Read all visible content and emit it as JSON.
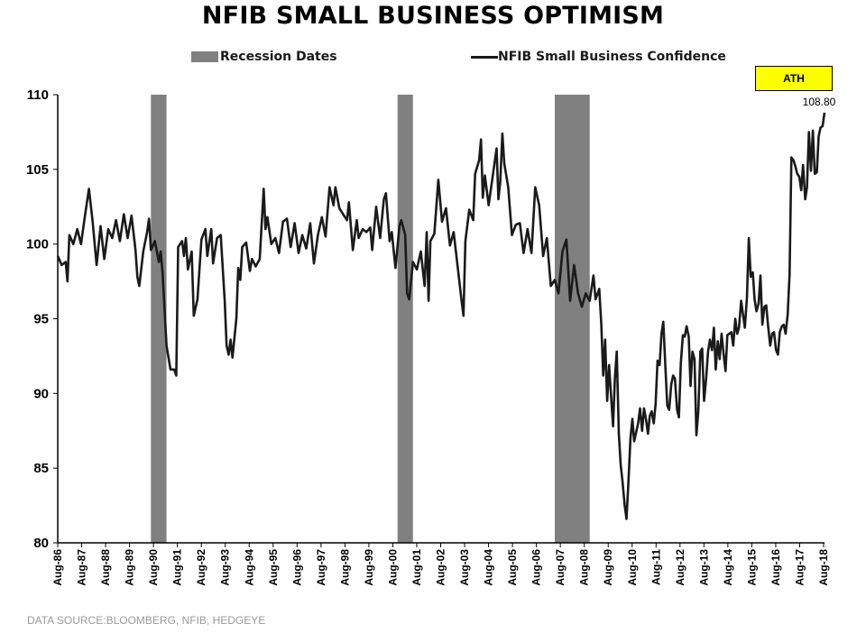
{
  "chart_data": {
    "type": "line",
    "title": "NFIB SMALL BUSINESS OPTIMISM",
    "xlabel": "",
    "ylabel": "",
    "ylim": [
      80,
      110
    ],
    "yticks": [
      "80",
      "85",
      "90",
      "95",
      "100",
      "105",
      "110"
    ],
    "x_start": "1986-08",
    "x_end": "2018-08",
    "xtick_labels": [
      "Aug-86",
      "Aug-87",
      "Aug-88",
      "Aug-89",
      "Aug-90",
      "Aug-91",
      "Aug-92",
      "Aug-93",
      "Aug-94",
      "Aug-95",
      "Aug-96",
      "Aug-97",
      "Aug-98",
      "Aug-99",
      "Aug-00",
      "Aug-01",
      "Aug-02",
      "Aug-03",
      "Aug-04",
      "Aug-05",
      "Aug-06",
      "Aug-07",
      "Aug-08",
      "Aug-09",
      "Aug-10",
      "Aug-11",
      "Aug-12",
      "Aug-13",
      "Aug-14",
      "Aug-15",
      "Aug-16",
      "Aug-17",
      "Aug-18"
    ],
    "legend": {
      "recession_label": "Recession Dates",
      "series_label": "NFIB Small Business Confidence",
      "placement": "top"
    },
    "recessions": [
      {
        "start": 1990.58,
        "end": 1991.25
      },
      {
        "start": 2001.17,
        "end": 2001.83
      },
      {
        "start": 2007.92,
        "end": 2009.42
      }
    ],
    "series": [
      {
        "name": "NFIB Small Business Confidence",
        "color": "#1a1a1a",
        "points": [
          [
            1986.58,
            99.2
          ],
          [
            1986.75,
            98.6
          ],
          [
            1986.92,
            98.8
          ],
          [
            1987.0,
            97.5
          ],
          [
            1987.08,
            100.6
          ],
          [
            1987.25,
            100.0
          ],
          [
            1987.42,
            101.0
          ],
          [
            1987.58,
            100.0
          ],
          [
            1987.75,
            101.9
          ],
          [
            1987.92,
            103.7
          ],
          [
            1988.08,
            101.5
          ],
          [
            1988.25,
            98.6
          ],
          [
            1988.42,
            101.2
          ],
          [
            1988.58,
            99.0
          ],
          [
            1988.75,
            101.0
          ],
          [
            1988.92,
            100.4
          ],
          [
            1989.08,
            101.6
          ],
          [
            1989.25,
            100.2
          ],
          [
            1989.42,
            102.0
          ],
          [
            1989.58,
            100.4
          ],
          [
            1989.75,
            101.9
          ],
          [
            1989.92,
            99.6
          ],
          [
            1990.0,
            97.8
          ],
          [
            1990.08,
            97.2
          ],
          [
            1990.25,
            99.5
          ],
          [
            1990.42,
            100.8
          ],
          [
            1990.5,
            101.7
          ],
          [
            1990.58,
            99.6
          ],
          [
            1990.75,
            100.2
          ],
          [
            1990.92,
            98.8
          ],
          [
            1991.0,
            99.5
          ],
          [
            1991.08,
            98.1
          ],
          [
            1991.25,
            93.2
          ],
          [
            1991.42,
            91.6
          ],
          [
            1991.58,
            91.6
          ],
          [
            1991.67,
            91.2
          ],
          [
            1991.75,
            99.8
          ],
          [
            1991.92,
            100.2
          ],
          [
            1992.0,
            99.2
          ],
          [
            1992.08,
            100.4
          ],
          [
            1992.17,
            98.3
          ],
          [
            1992.33,
            99.5
          ],
          [
            1992.42,
            95.2
          ],
          [
            1992.58,
            96.3
          ],
          [
            1992.75,
            100.3
          ],
          [
            1992.92,
            101.0
          ],
          [
            1993.0,
            99.2
          ],
          [
            1993.17,
            101.0
          ],
          [
            1993.25,
            98.7
          ],
          [
            1993.42,
            100.4
          ],
          [
            1993.58,
            100.6
          ],
          [
            1993.75,
            96.2
          ],
          [
            1993.83,
            93.2
          ],
          [
            1993.92,
            92.6
          ],
          [
            1994.0,
            93.6
          ],
          [
            1994.08,
            92.4
          ],
          [
            1994.25,
            95.0
          ],
          [
            1994.33,
            98.4
          ],
          [
            1994.42,
            97.6
          ],
          [
            1994.5,
            99.8
          ],
          [
            1994.67,
            100.1
          ],
          [
            1994.83,
            98.2
          ],
          [
            1994.92,
            99.0
          ],
          [
            1995.08,
            98.5
          ],
          [
            1995.25,
            99.0
          ],
          [
            1995.42,
            103.7
          ],
          [
            1995.5,
            101.0
          ],
          [
            1995.58,
            101.8
          ],
          [
            1995.75,
            100.0
          ],
          [
            1995.92,
            100.4
          ],
          [
            1996.08,
            99.4
          ],
          [
            1996.25,
            101.5
          ],
          [
            1996.42,
            101.7
          ],
          [
            1996.58,
            99.8
          ],
          [
            1996.75,
            101.4
          ],
          [
            1996.92,
            99.4
          ],
          [
            1997.08,
            100.6
          ],
          [
            1997.25,
            99.7
          ],
          [
            1997.42,
            101.4
          ],
          [
            1997.58,
            98.7
          ],
          [
            1997.75,
            100.6
          ],
          [
            1997.92,
            101.8
          ],
          [
            1998.08,
            100.5
          ],
          [
            1998.25,
            103.8
          ],
          [
            1998.42,
            102.6
          ],
          [
            1998.5,
            103.8
          ],
          [
            1998.67,
            102.4
          ],
          [
            1998.83,
            102.0
          ],
          [
            1999.0,
            101.6
          ],
          [
            1999.08,
            102.8
          ],
          [
            1999.25,
            99.6
          ],
          [
            1999.42,
            101.6
          ],
          [
            1999.5,
            100.4
          ],
          [
            1999.67,
            101.0
          ],
          [
            1999.83,
            100.8
          ],
          [
            2000.0,
            101.1
          ],
          [
            2000.08,
            99.6
          ],
          [
            2000.25,
            102.5
          ],
          [
            2000.42,
            100.4
          ],
          [
            2000.58,
            103.0
          ],
          [
            2000.67,
            103.4
          ],
          [
            2000.83,
            100.2
          ],
          [
            2000.92,
            100.8
          ],
          [
            2001.08,
            98.4
          ],
          [
            2001.25,
            101.2
          ],
          [
            2001.33,
            101.6
          ],
          [
            2001.5,
            100.6
          ],
          [
            2001.58,
            96.7
          ],
          [
            2001.67,
            96.3
          ],
          [
            2001.83,
            98.8
          ],
          [
            2002.0,
            98.3
          ],
          [
            2002.17,
            99.5
          ],
          [
            2002.33,
            97.2
          ],
          [
            2002.42,
            100.8
          ],
          [
            2002.5,
            96.2
          ],
          [
            2002.58,
            100.2
          ],
          [
            2002.75,
            100.7
          ],
          [
            2002.92,
            104.3
          ],
          [
            2003.08,
            101.5
          ],
          [
            2003.25,
            102.4
          ],
          [
            2003.42,
            99.9
          ],
          [
            2003.58,
            100.8
          ],
          [
            2003.75,
            98.5
          ],
          [
            2003.92,
            96.2
          ],
          [
            2004.0,
            95.2
          ],
          [
            2004.08,
            100.2
          ],
          [
            2004.25,
            102.3
          ],
          [
            2004.42,
            101.6
          ],
          [
            2004.5,
            104.7
          ],
          [
            2004.67,
            105.6
          ],
          [
            2004.75,
            107.0
          ],
          [
            2004.83,
            103.1
          ],
          [
            2004.92,
            104.6
          ],
          [
            2005.08,
            102.6
          ],
          [
            2005.25,
            104.5
          ],
          [
            2005.42,
            106.4
          ],
          [
            2005.5,
            103.0
          ],
          [
            2005.58,
            104.2
          ],
          [
            2005.67,
            107.4
          ],
          [
            2005.75,
            105.4
          ],
          [
            2005.92,
            103.8
          ],
          [
            2006.08,
            100.6
          ],
          [
            2006.25,
            101.3
          ],
          [
            2006.42,
            101.4
          ],
          [
            2006.58,
            99.4
          ],
          [
            2006.75,
            101.0
          ],
          [
            2006.92,
            99.4
          ],
          [
            2007.08,
            103.8
          ],
          [
            2007.25,
            102.6
          ],
          [
            2007.42,
            99.2
          ],
          [
            2007.58,
            100.4
          ],
          [
            2007.75,
            97.2
          ],
          [
            2007.92,
            97.6
          ],
          [
            2008.08,
            96.7
          ],
          [
            2008.25,
            99.5
          ],
          [
            2008.42,
            100.3
          ],
          [
            2008.58,
            96.2
          ],
          [
            2008.75,
            98.6
          ],
          [
            2008.92,
            96.7
          ],
          [
            2009.08,
            95.8
          ],
          [
            2009.25,
            96.7
          ],
          [
            2009.42,
            96.2
          ],
          [
            2009.58,
            97.9
          ],
          [
            2009.67,
            96.3
          ],
          [
            2009.83,
            97.0
          ],
          [
            2009.92,
            94.6
          ],
          [
            2010.0,
            91.2
          ],
          [
            2010.08,
            93.6
          ],
          [
            2010.17,
            89.5
          ],
          [
            2010.25,
            91.9
          ],
          [
            2010.42,
            87.8
          ],
          [
            2010.5,
            91.0
          ],
          [
            2010.58,
            92.8
          ],
          [
            2010.67,
            87.3
          ],
          [
            2010.75,
            85.2
          ],
          [
            2010.83,
            84.1
          ],
          [
            2010.92,
            82.5
          ],
          [
            2011.0,
            81.6
          ],
          [
            2011.08,
            84.0
          ],
          [
            2011.17,
            87.0
          ],
          [
            2011.25,
            88.3
          ],
          [
            2011.33,
            86.8
          ],
          [
            2011.5,
            88.0
          ],
          [
            2011.58,
            89.0
          ],
          [
            2011.67,
            87.5
          ],
          [
            2011.75,
            89.0
          ],
          [
            2011.83,
            88.3
          ],
          [
            2011.92,
            87.3
          ],
          [
            2012.0,
            88.5
          ],
          [
            2012.08,
            88.8
          ],
          [
            2012.17,
            88.0
          ],
          [
            2012.25,
            89.3
          ],
          [
            2012.33,
            92.2
          ],
          [
            2012.42,
            91.9
          ],
          [
            2012.5,
            94.0
          ],
          [
            2012.58,
            94.8
          ],
          [
            2012.67,
            91.8
          ],
          [
            2012.75,
            89.2
          ],
          [
            2012.83,
            88.9
          ],
          [
            2012.92,
            90.6
          ],
          [
            2013.0,
            91.2
          ],
          [
            2013.08,
            91.0
          ],
          [
            2013.17,
            88.9
          ],
          [
            2013.25,
            88.4
          ],
          [
            2013.33,
            92.0
          ],
          [
            2013.42,
            93.9
          ],
          [
            2013.5,
            93.8
          ],
          [
            2013.58,
            94.5
          ],
          [
            2013.67,
            93.8
          ],
          [
            2013.75,
            90.5
          ],
          [
            2013.83,
            92.8
          ],
          [
            2013.92,
            92.3
          ],
          [
            2014.0,
            87.2
          ],
          [
            2014.08,
            88.8
          ],
          [
            2014.17,
            92.8
          ],
          [
            2014.25,
            93.0
          ],
          [
            2014.33,
            89.5
          ],
          [
            2014.42,
            91.0
          ],
          [
            2014.5,
            92.8
          ],
          [
            2014.58,
            93.6
          ],
          [
            2014.67,
            92.9
          ],
          [
            2014.75,
            94.4
          ],
          [
            2014.83,
            91.6
          ],
          [
            2014.92,
            93.5
          ],
          [
            2015.0,
            92.3
          ],
          [
            2015.08,
            94.0
          ],
          [
            2015.17,
            92.6
          ],
          [
            2015.25,
            91.5
          ],
          [
            2015.33,
            93.9
          ],
          [
            2015.5,
            94.1
          ],
          [
            2015.58,
            93.2
          ],
          [
            2015.67,
            95.0
          ],
          [
            2015.75,
            94.0
          ],
          [
            2015.83,
            94.4
          ],
          [
            2015.92,
            96.2
          ],
          [
            2016.0,
            95.3
          ],
          [
            2016.08,
            94.4
          ],
          [
            2016.17,
            96.4
          ],
          [
            2016.25,
            100.4
          ],
          [
            2016.33,
            97.8
          ],
          [
            2016.42,
            98.1
          ],
          [
            2016.5,
            96.3
          ],
          [
            2016.58,
            95.5
          ],
          [
            2016.67,
            96.0
          ],
          [
            2016.75,
            97.9
          ],
          [
            2016.83,
            94.6
          ],
          [
            2016.92,
            95.8
          ],
          [
            2017.0,
            95.9
          ],
          [
            2017.08,
            94.5
          ],
          [
            2017.17,
            93.2
          ],
          [
            2017.25,
            94.0
          ],
          [
            2017.33,
            94.1
          ],
          [
            2017.42,
            92.9
          ],
          [
            2017.5,
            92.6
          ],
          [
            2017.58,
            94.1
          ],
          [
            2017.67,
            94.5
          ],
          [
            2017.75,
            94.6
          ],
          [
            2017.83,
            94.0
          ],
          [
            2017.92,
            95.3
          ],
          [
            2018.0,
            98.0
          ],
          [
            2018.08,
            105.8
          ],
          [
            2018.17,
            105.6
          ],
          [
            2018.25,
            105.2
          ],
          [
            2018.33,
            104.7
          ],
          [
            2018.42,
            104.5
          ],
          [
            2018.5,
            103.6
          ],
          [
            2018.58,
            105.3
          ],
          [
            2018.67,
            103.0
          ],
          [
            2018.75,
            103.8
          ],
          [
            2018.83,
            107.5
          ],
          [
            2018.92,
            104.9
          ],
          [
            2019.0,
            107.6
          ],
          [
            2019.08,
            104.7
          ],
          [
            2019.17,
            104.8
          ],
          [
            2019.25,
            107.2
          ],
          [
            2019.33,
            107.8
          ],
          [
            2019.42,
            107.9
          ],
          [
            2019.5,
            108.8
          ]
        ]
      }
    ],
    "annotations": [
      {
        "label": "ATH",
        "value": "108.80",
        "style_color": "#ffff00"
      }
    ],
    "source": "DATA SOURCE:BLOOMBERG, NFIB, HEDGEYE"
  }
}
